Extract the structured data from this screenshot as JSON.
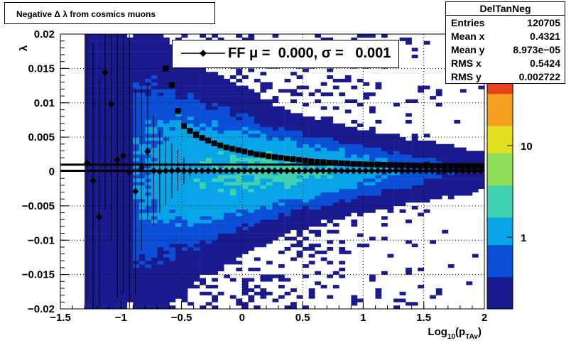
{
  "title": "Negative Δ λ  from cosmics muons",
  "stats": {
    "name": "DelTanNeg",
    "rows": [
      {
        "key": "Entries",
        "value": "120705"
      },
      {
        "key": "Mean x",
        "value": "0.4321"
      },
      {
        "key": "Mean y",
        "value": "8.973e−05"
      },
      {
        "key": "RMS x",
        "value": "0.5424"
      },
      {
        "key": "RMS y",
        "value": "0.002722"
      }
    ]
  },
  "legend": {
    "text": "FF μ =  0.000, σ =   0.001"
  },
  "colors": {
    "profile": "#000000",
    "palette": [
      "#1a1a8f",
      "#0b4fd6",
      "#08a4e8",
      "#3fd0b0",
      "#8ee05a",
      "#e0e020",
      "#f5a020",
      "#e8401a",
      "#b00010"
    ]
  },
  "chart_data": {
    "type": "heatmap",
    "xlabel": "Log₁₀(p_TAv)",
    "ylabel": "λ",
    "xlim": [
      -1.5,
      2
    ],
    "ylim": [
      -0.02,
      0.02
    ],
    "xticks": [
      "−1.5",
      "−1",
      "−0.5",
      "0",
      "0.5",
      "1",
      "1.5",
      "2"
    ],
    "yticks": [
      "−0.02",
      "−0.015",
      "−0.01",
      "−0.005",
      "0",
      "0.005",
      "0.01",
      "0.015",
      "0.02"
    ],
    "colorbar_ticks": [
      "10",
      "1"
    ],
    "grid": true,
    "log_z": true,
    "density_description": "counts concentrated near lambda = 0, spreading wider at low Log10(p)",
    "series": [
      {
        "name": "FF",
        "marker": "diamond",
        "x": [
          -1.28,
          -1.23,
          -1.18,
          -1.13,
          -1.08,
          -1.03,
          -0.98,
          -0.93,
          -0.88,
          -0.83,
          -0.78,
          -0.73,
          -0.68,
          -0.63,
          -0.58,
          -0.53,
          -0.48,
          -0.43,
          -0.38,
          -0.33,
          -0.28,
          -0.23,
          -0.18,
          -0.13,
          -0.08,
          -0.03,
          0.02,
          0.07,
          0.12,
          0.17,
          0.22,
          0.27,
          0.32,
          0.37,
          0.42,
          0.47,
          0.52,
          0.57,
          0.62,
          0.67,
          0.72,
          0.77,
          0.82,
          0.87,
          0.92,
          0.97,
          1.02,
          1.07,
          1.12,
          1.17,
          1.22,
          1.27,
          1.32,
          1.37,
          1.42,
          1.47,
          1.52,
          1.57,
          1.62,
          1.67,
          1.72,
          1.77,
          1.82,
          1.87,
          1.92,
          1.97
        ],
        "y": [
          0.0012,
          -0.0013,
          -0.0066,
          0.0144,
          0.0098,
          0.0017,
          0.0023,
          -0.0001,
          -0.0029,
          0.0005,
          0.0029,
          0.0001,
          0.0,
          0.0001,
          0.0001,
          0.0002,
          0.0001,
          0.0001,
          0.0001,
          0.0001,
          0.0001,
          0.0001,
          0.0001,
          0.0001,
          0.0001,
          0.0001,
          0.0001,
          0.0001,
          0.0001,
          0.0001,
          0.0001,
          0.0001,
          0.0001,
          0.0001,
          0.0001,
          0.0001,
          0.0001,
          0.0001,
          0.0001,
          0.0001,
          0.0001,
          0.0001,
          0.0001,
          0.0001,
          0.0001,
          0.0001,
          0.0001,
          0.0001,
          0.0001,
          0.0001,
          0.0001,
          0.0001,
          0.0001,
          0.0001,
          0.0001,
          0.0001,
          0.0001,
          0.0001,
          0.0001,
          0.0001,
          0.0001,
          0.0001,
          0.0001,
          0.0001,
          0.0001,
          0.0001
        ],
        "err": [
          0.02,
          0.02,
          0.02,
          0.02,
          0.02,
          0.02,
          0.02,
          0.02,
          0.015,
          0.012,
          0.01,
          0.008,
          0.006,
          0.005,
          0.004,
          0.003,
          0.002,
          0.001,
          0,
          0,
          0,
          0,
          0,
          0,
          0,
          0,
          0,
          0,
          0,
          0,
          0,
          0,
          0,
          0,
          0,
          0,
          0,
          0,
          0,
          0,
          0,
          0,
          0,
          0,
          0,
          0,
          0,
          0,
          0,
          0,
          0,
          0,
          0,
          0,
          0,
          0,
          0,
          0,
          0,
          0,
          0,
          0,
          0,
          0,
          0,
          0
        ]
      },
      {
        "name": "",
        "marker": "square",
        "x": [
          -0.63,
          -0.58,
          -0.53,
          -0.48,
          -0.43,
          -0.38,
          -0.33,
          -0.28,
          -0.23,
          -0.18,
          -0.13,
          -0.08,
          -0.03,
          0.02,
          0.07,
          0.12,
          0.17,
          0.22,
          0.27,
          0.32,
          0.37,
          0.42,
          0.47,
          0.52,
          0.57,
          0.62,
          0.67,
          0.72,
          0.77,
          0.82,
          0.87,
          0.92,
          0.97,
          1.02,
          1.07,
          1.12,
          1.17,
          1.22,
          1.27,
          1.32,
          1.37,
          1.42,
          1.47,
          1.52,
          1.57,
          1.62,
          1.67,
          1.72,
          1.77,
          1.82,
          1.87,
          1.92,
          1.97
        ],
        "y": [
          0.015,
          0.0126,
          0.0088,
          0.0066,
          0.0059,
          0.0053,
          0.0049,
          0.0045,
          0.0041,
          0.0038,
          0.0035,
          0.0033,
          0.0031,
          0.0029,
          0.0027,
          0.0025,
          0.0024,
          0.0022,
          0.0021,
          0.002,
          0.0019,
          0.0018,
          0.0017,
          0.0016,
          0.0015,
          0.0014,
          0.00135,
          0.0013,
          0.00125,
          0.0012,
          0.00115,
          0.0011,
          0.00108,
          0.00105,
          0.00102,
          0.001,
          0.00098,
          0.00096,
          0.00094,
          0.00092,
          0.0009,
          0.00088,
          0.00086,
          0.00085,
          0.00084,
          0.00083,
          0.00082,
          0.00081,
          0.0008,
          0.0008,
          0.0008,
          0.0008,
          0.0008
        ]
      }
    ],
    "hlines": [
      0.001,
      0.0001
    ]
  }
}
